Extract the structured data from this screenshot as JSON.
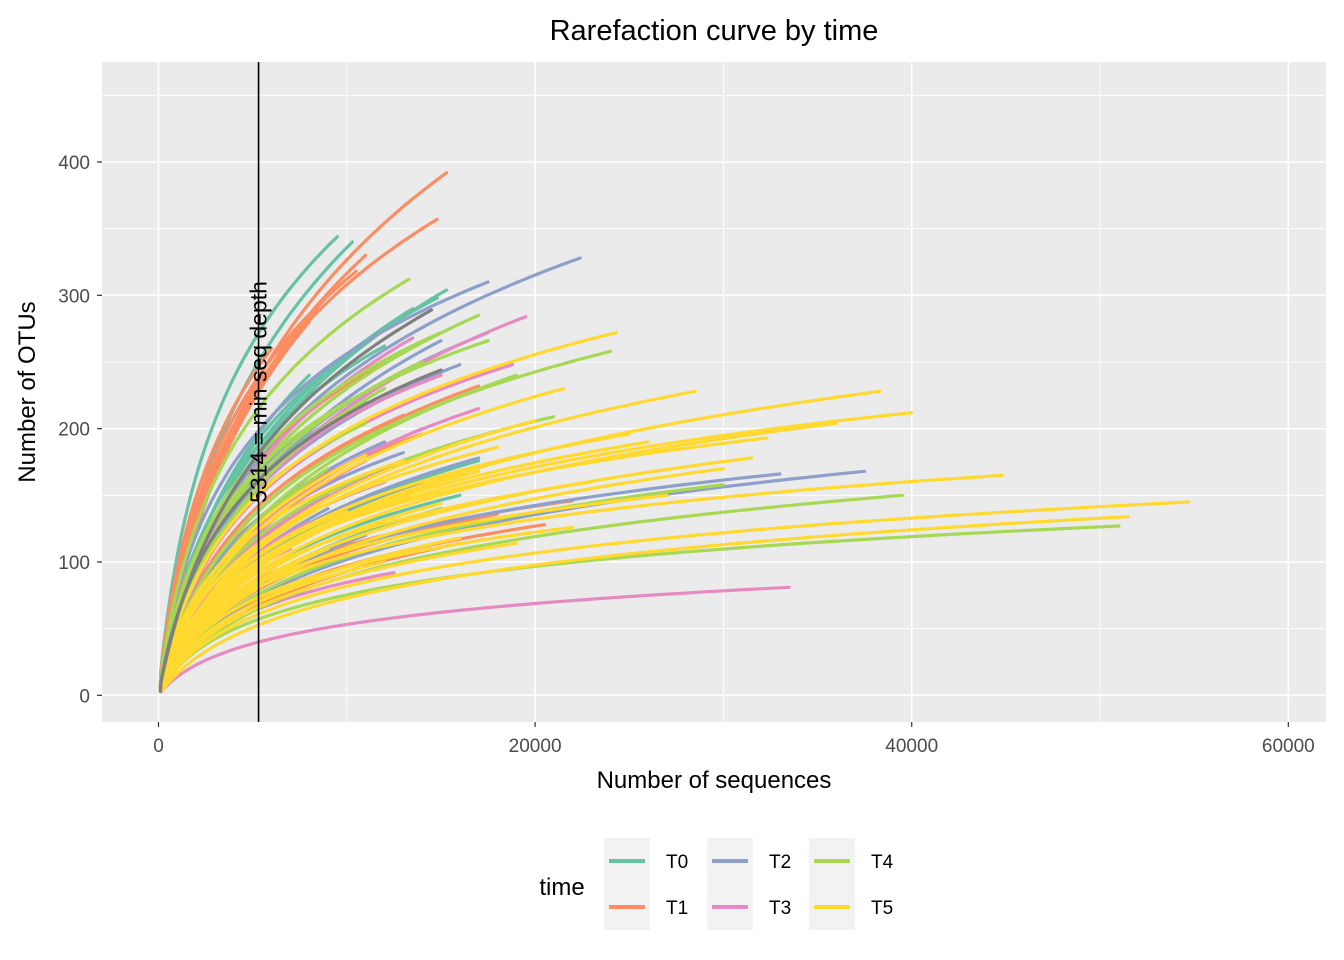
{
  "chart_data": {
    "type": "line",
    "title": "Rarefaction curve by time",
    "xlabel": "Number of sequences",
    "ylabel": "Number of OTUs",
    "xlim": [
      -3000,
      62000
    ],
    "ylim": [
      -20,
      475
    ],
    "x_ticks": [
      0,
      20000,
      40000,
      60000
    ],
    "x_tick_labels": [
      "0",
      "20000",
      "40000",
      "60000"
    ],
    "y_ticks": [
      0,
      100,
      200,
      300,
      400
    ],
    "y_tick_labels": [
      "0",
      "100",
      "200",
      "300",
      "400"
    ],
    "grid": true,
    "panel_background": "#EBEBEB",
    "grid_color": "#FFFFFF",
    "vline": {
      "x": 5314,
      "label": "5314 = min seq depth"
    },
    "legend": {
      "title": "time",
      "position": "bottom",
      "entries": [
        "T0",
        "T1",
        "T2",
        "T3",
        "T4",
        "T5"
      ],
      "colors": [
        "#66C2A5",
        "#FC8D62",
        "#8DA0CB",
        "#E78AC3",
        "#A6D854",
        "#FFD92F"
      ]
    },
    "series_note": "Rarefaction curves, one per sample; endpoints [max sequences, final OTUs] read from the figure",
    "groups": [
      {
        "name": "T0",
        "color": "#66C2A5",
        "curves": [
          [
            9500,
            344
          ],
          [
            10300,
            340
          ],
          [
            15300,
            304
          ],
          [
            14800,
            298
          ],
          [
            17000,
            176
          ],
          [
            3300,
            56
          ],
          [
            13500,
            290
          ],
          [
            12000,
            262
          ],
          [
            8000,
            240
          ],
          [
            11000,
            220
          ],
          [
            16000,
            150
          ],
          [
            15000,
            140
          ],
          [
            6000,
            180
          ],
          [
            14000,
            160
          ],
          [
            7000,
            200
          ]
        ]
      },
      {
        "name": "T1",
        "color": "#FC8D62",
        "curves": [
          [
            15300,
            392
          ],
          [
            14800,
            357
          ],
          [
            11000,
            330
          ],
          [
            10500,
            318
          ],
          [
            17000,
            232
          ],
          [
            22000,
            146
          ],
          [
            20500,
            128
          ],
          [
            16000,
            114
          ],
          [
            13000,
            210
          ],
          [
            9000,
            300
          ],
          [
            12000,
            250
          ],
          [
            8000,
            280
          ],
          [
            14000,
            196
          ],
          [
            18000,
            136
          ],
          [
            6000,
            260
          ]
        ]
      },
      {
        "name": "T2",
        "color": "#8DA0CB",
        "curves": [
          [
            22400,
            328
          ],
          [
            17500,
            310
          ],
          [
            17500,
            272
          ],
          [
            15000,
            266
          ],
          [
            12000,
            190
          ],
          [
            37500,
            168
          ],
          [
            33000,
            166
          ],
          [
            17000,
            178
          ],
          [
            13000,
            182
          ],
          [
            10000,
            230
          ],
          [
            8000,
            200
          ],
          [
            14000,
            160
          ],
          [
            11000,
            120
          ],
          [
            16000,
            248
          ],
          [
            9000,
            140
          ]
        ]
      },
      {
        "name": "T3",
        "color": "#E78AC3",
        "curves": [
          [
            33500,
            81
          ],
          [
            19500,
            284
          ],
          [
            18800,
            248
          ],
          [
            13500,
            268
          ],
          [
            12500,
            92
          ],
          [
            10000,
            210
          ],
          [
            15000,
            240
          ],
          [
            9000,
            150
          ],
          [
            11000,
            176
          ],
          [
            8000,
            130
          ],
          [
            14000,
            200
          ],
          [
            7000,
            110
          ],
          [
            16000,
            190
          ],
          [
            12000,
            160
          ],
          [
            17000,
            215
          ]
        ]
      },
      {
        "name": "T4",
        "color": "#A6D854",
        "curves": [
          [
            13300,
            312
          ],
          [
            17000,
            285
          ],
          [
            17500,
            266
          ],
          [
            24000,
            258
          ],
          [
            19000,
            240
          ],
          [
            21000,
            209
          ],
          [
            39500,
            150
          ],
          [
            51000,
            127
          ],
          [
            30000,
            158
          ],
          [
            15000,
            272
          ],
          [
            12000,
            230
          ],
          [
            11000,
            204
          ],
          [
            10000,
            186
          ],
          [
            9000,
            170
          ],
          [
            14000,
            250
          ]
        ]
      },
      {
        "name": "T5",
        "color": "#FFD92F",
        "curves": [
          [
            38300,
            228
          ],
          [
            40000,
            212
          ],
          [
            28500,
            228
          ],
          [
            24300,
            272
          ],
          [
            21500,
            230
          ],
          [
            32300,
            193
          ],
          [
            31500,
            178
          ],
          [
            44800,
            165
          ],
          [
            54700,
            145
          ],
          [
            51500,
            134
          ],
          [
            25000,
            196
          ],
          [
            20000,
            206
          ],
          [
            18000,
            186
          ],
          [
            36000,
            204
          ],
          [
            23000,
            160
          ],
          [
            17000,
            168
          ],
          [
            13000,
            176
          ],
          [
            19000,
            114
          ],
          [
            14000,
            154
          ],
          [
            12000,
            100
          ],
          [
            16000,
            118
          ],
          [
            10000,
            138
          ],
          [
            15000,
            144
          ],
          [
            22000,
            126
          ],
          [
            8000,
            120
          ],
          [
            27000,
            150
          ],
          [
            11000,
            180
          ],
          [
            9000,
            110
          ],
          [
            26000,
            190
          ],
          [
            30000,
            170
          ]
        ]
      },
      {
        "name": "",
        "color": "#7F7F7F",
        "curves": [
          [
            14500,
            289
          ],
          [
            15000,
            244
          ]
        ]
      }
    ]
  }
}
